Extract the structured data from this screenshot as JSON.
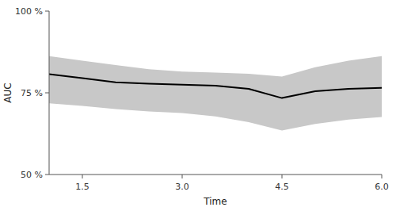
{
  "chart_data": {
    "type": "line",
    "x": [
      1.0,
      1.5,
      2.0,
      2.5,
      3.0,
      3.5,
      4.0,
      4.5,
      5.0,
      5.5,
      6.0
    ],
    "series": [
      {
        "type": "band",
        "color": "#c8c8c8",
        "upper": [
          0.862,
          0.848,
          0.835,
          0.822,
          0.815,
          0.812,
          0.808,
          0.8,
          0.828,
          0.848,
          0.862
        ],
        "lower": [
          0.718,
          0.71,
          0.7,
          0.693,
          0.688,
          0.678,
          0.66,
          0.635,
          0.655,
          0.668,
          0.676
        ]
      },
      {
        "type": "line",
        "color": "#000000",
        "values": [
          0.807,
          0.795,
          0.782,
          0.778,
          0.775,
          0.772,
          0.762,
          0.734,
          0.755,
          0.762,
          0.765
        ]
      }
    ],
    "xlim": [
      1.0,
      6.0
    ],
    "ylim": [
      0.5,
      1.0
    ],
    "xticks": [
      1.5,
      {
        "value": 3.0,
        "label": "3.0"
      },
      4.5,
      {
        "value": 6.0,
        "label": "6.0"
      }
    ],
    "yticks": [
      {
        "value": 0.5,
        "label": "50 %"
      },
      {
        "value": 0.75,
        "label": "75 %"
      },
      {
        "value": 1.0,
        "label": "100 %"
      }
    ],
    "xlabel": "Time",
    "ylabel": "AUC"
  }
}
